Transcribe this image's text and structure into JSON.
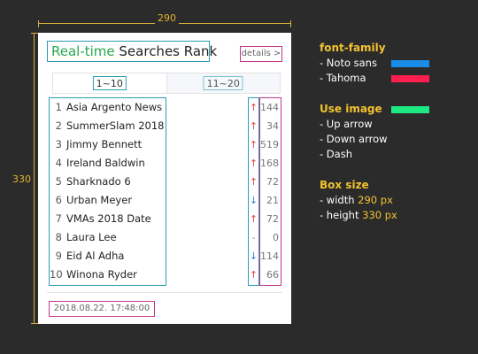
{
  "dimensions": {
    "width_label": "290",
    "height_label": "330"
  },
  "widget": {
    "title_accent": "Real-time",
    "title_rest": " Searches Rank",
    "details_label": "details >",
    "tabs": [
      {
        "label": "1~10",
        "active": true
      },
      {
        "label": "11~20",
        "active": false
      }
    ],
    "items": [
      {
        "rank": "1",
        "term": "Asia Argento News",
        "trend": "up",
        "value": "144"
      },
      {
        "rank": "2",
        "term": "SummerSlam 2018",
        "trend": "up",
        "value": "34"
      },
      {
        "rank": "3",
        "term": "Jimmy Bennett",
        "trend": "up",
        "value": "519"
      },
      {
        "rank": "4",
        "term": "Ireland Baldwin",
        "trend": "up",
        "value": "168"
      },
      {
        "rank": "5",
        "term": "Sharknado 6",
        "trend": "up",
        "value": "72"
      },
      {
        "rank": "6",
        "term": "Urban Meyer",
        "trend": "down",
        "value": "21"
      },
      {
        "rank": "7",
        "term": "VMAs 2018 Date",
        "trend": "up",
        "value": "72"
      },
      {
        "rank": "8",
        "term": "Laura Lee",
        "trend": "dash",
        "value": "0"
      },
      {
        "rank": "9",
        "term": "Eid Al Adha",
        "trend": "down",
        "value": "114"
      },
      {
        "rank": "10",
        "term": "Winona Ryder",
        "trend": "up",
        "value": "66"
      }
    ],
    "timestamp": "2018.08.22. 17:48:00"
  },
  "legend": {
    "font_heading": "font-family",
    "font_noto": "- Noto sans",
    "font_tahoma": "- Tahoma",
    "image_heading": "Use image",
    "image_up": "- Up arrow",
    "image_down": "- Down arrow",
    "image_dash": "- Dash",
    "box_heading": "Box size",
    "box_width_prefix": "- width ",
    "box_width_value": "290 px",
    "box_height_prefix": "- height ",
    "box_height_value": "330 px"
  },
  "icons": {
    "up": "↑",
    "down": "↓",
    "dash": "-"
  },
  "colors": {
    "title_accent": "#25a84f",
    "noto_swatch": "#1a8de8",
    "tahoma_swatch": "#ff1f4f",
    "image_swatch": "#1ee882",
    "highlight": "#f2c230",
    "up_arrow": "#e0473b",
    "down_arrow": "#2f7fd1",
    "page_background": "#2b2b2b"
  }
}
